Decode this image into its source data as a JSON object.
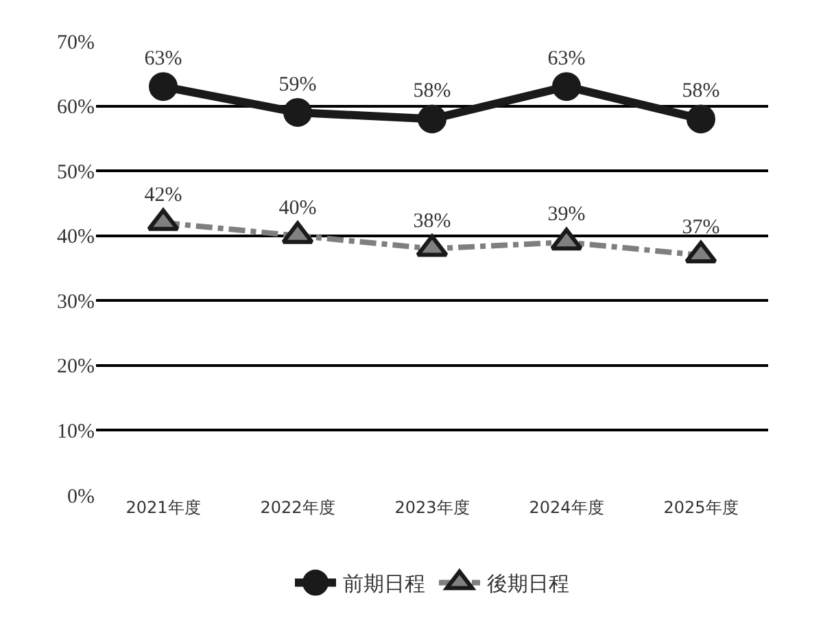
{
  "chart_data": {
    "type": "line",
    "categories": [
      "2021年度",
      "2022年度",
      "2023年度",
      "2024年度",
      "2025年度"
    ],
    "series": [
      {
        "name": "前期日程",
        "color": "#1a1a1a",
        "values": [
          63,
          59,
          58,
          63,
          58
        ],
        "value_labels": [
          "63%",
          "59%",
          "58%",
          "63%",
          "58%"
        ],
        "marker": "circle",
        "line_style": "solid"
      },
      {
        "name": "後期日程",
        "color": "#7f7f7f",
        "values": [
          42,
          40,
          38,
          39,
          37
        ],
        "value_labels": [
          "42%",
          "40%",
          "38%",
          "39%",
          "37%"
        ],
        "marker": "triangle",
        "line_style": "dashed"
      }
    ],
    "ylim": [
      0,
      70
    ],
    "yticks": [
      {
        "value": 0,
        "label": "0%"
      },
      {
        "value": 10,
        "label": "10%"
      },
      {
        "value": 20,
        "label": "20%"
      },
      {
        "value": 30,
        "label": "30%"
      },
      {
        "value": 40,
        "label": "40%"
      },
      {
        "value": 50,
        "label": "50%"
      },
      {
        "value": 60,
        "label": "60%"
      },
      {
        "value": 70,
        "label": "70%"
      }
    ],
    "grid": "y",
    "legend": "bottom"
  }
}
